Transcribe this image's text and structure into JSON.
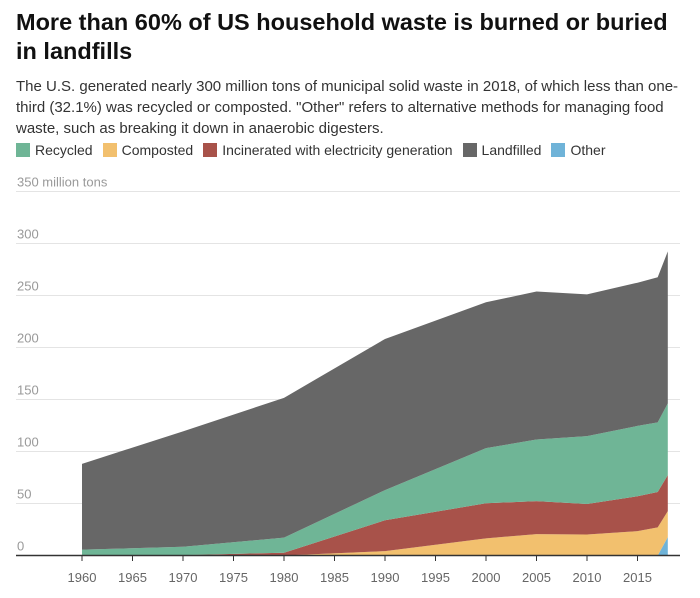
{
  "title": "More than 60% of US household waste is burned or buried in landfills",
  "subtitle": "The U.S. generated nearly 300 million tons of municipal solid waste in 2018, of which less than one-third (32.1%) was recycled or composted. \"Other\" refers to alternative methods for managing food waste, such as breaking it down in anaerobic digesters.",
  "chart_data": {
    "type": "area",
    "stacked": true,
    "x": [
      1960,
      1970,
      1980,
      1990,
      2000,
      2005,
      2010,
      2015,
      2017,
      2018
    ],
    "series": [
      {
        "name": "Other",
        "color": "#6fb3d8",
        "values": [
          0,
          0,
          0,
          0,
          0,
          0,
          0,
          0,
          0,
          17.7
        ]
      },
      {
        "name": "Composted",
        "color": "#f2c06e",
        "values": [
          0,
          0,
          0,
          4.2,
          16.5,
          20.6,
          20.2,
          23.4,
          27.0,
          25.0
        ]
      },
      {
        "name": "Incinerated with electricity generation",
        "color": "#a8524a",
        "values": [
          0,
          0.4,
          2.7,
          29.7,
          33.7,
          31.7,
          29.3,
          33.6,
          34.0,
          34.6
        ]
      },
      {
        "name": "Recycled",
        "color": "#6fb596",
        "values": [
          5.6,
          8.0,
          14.5,
          29.0,
          53.0,
          59.2,
          65.3,
          67.6,
          67.0,
          69.0
        ]
      },
      {
        "name": "Landfilled",
        "color": "#676767",
        "values": [
          82.5,
          111.0,
          134.4,
          145.3,
          140.3,
          142.3,
          136.3,
          137.7,
          139.6,
          146.1
        ]
      }
    ],
    "legend_order": [
      "Recycled",
      "Composted",
      "Incinerated with electricity generation",
      "Landfilled",
      "Other"
    ],
    "legend_placement": "top-left",
    "ylim": [
      0,
      350
    ],
    "yticks": [
      "0",
      "50",
      "100",
      "150",
      "200",
      "250",
      "300",
      "350 million tons"
    ],
    "xticks": [
      "1960",
      "1965",
      "1970",
      "1975",
      "1980",
      "1985",
      "1990",
      "1995",
      "2000",
      "2005",
      "2010",
      "2015"
    ],
    "xlim": [
      1960,
      2018
    ],
    "grid": true
  }
}
